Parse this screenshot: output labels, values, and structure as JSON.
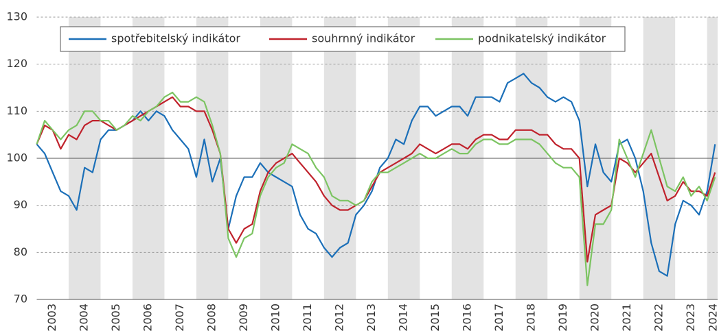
{
  "chart_data": {
    "type": "line",
    "x": [
      2003,
      2003.25,
      2003.5,
      2003.75,
      2004,
      2004.25,
      2004.5,
      2004.75,
      2005,
      2005.25,
      2005.5,
      2005.75,
      2006,
      2006.25,
      2006.5,
      2006.75,
      2007,
      2007.25,
      2007.5,
      2007.75,
      2008,
      2008.25,
      2008.5,
      2008.75,
      2009,
      2009.25,
      2009.5,
      2009.75,
      2010,
      2010.25,
      2010.5,
      2010.75,
      2011,
      2011.25,
      2011.5,
      2011.75,
      2012,
      2012.25,
      2012.5,
      2012.75,
      2013,
      2013.25,
      2013.5,
      2013.75,
      2014,
      2014.25,
      2014.5,
      2014.75,
      2015,
      2015.25,
      2015.5,
      2015.75,
      2016,
      2016.25,
      2016.5,
      2016.75,
      2017,
      2017.25,
      2017.5,
      2017.75,
      2018,
      2018.25,
      2018.5,
      2018.75,
      2019,
      2019.25,
      2019.5,
      2019.75,
      2020,
      2020.25,
      2020.5,
      2020.75,
      2021,
      2021.25,
      2021.5,
      2021.75,
      2022,
      2022.25,
      2022.5,
      2022.75,
      2023,
      2023.25,
      2023.5,
      2023.75,
      2024,
      2024.25
    ],
    "series": [
      {
        "name": "spotřebitelský indikátor",
        "color": "#1b6fb8",
        "values": [
          103,
          101,
          97,
          93,
          92,
          89,
          98,
          97,
          104,
          106,
          106,
          107,
          108,
          110,
          108,
          110,
          109,
          106,
          104,
          102,
          96,
          104,
          95,
          100,
          85,
          92,
          96,
          96,
          99,
          97,
          96,
          95,
          94,
          88,
          85,
          84,
          81,
          79,
          81,
          82,
          88,
          90,
          93,
          98,
          100,
          104,
          103,
          108,
          111,
          111,
          109,
          110,
          111,
          111,
          109,
          113,
          113,
          113,
          112,
          116,
          117,
          118,
          116,
          115,
          113,
          112,
          113,
          112,
          108,
          94,
          103,
          97,
          95,
          103,
          104,
          100,
          93,
          82,
          76,
          75,
          86,
          91,
          90,
          88,
          93,
          103
        ]
      },
      {
        "name": "souhrnný indikátor",
        "color": "#c0222c",
        "values": [
          103,
          107,
          106,
          102,
          105,
          104,
          107,
          108,
          108,
          107,
          106,
          107,
          108,
          109,
          110,
          111,
          112,
          113,
          111,
          111,
          110,
          110,
          106,
          101,
          85,
          82,
          85,
          86,
          93,
          97,
          99,
          100,
          101,
          99,
          97,
          95,
          92,
          90,
          89,
          89,
          90,
          91,
          94,
          97,
          98,
          99,
          100,
          101,
          103,
          102,
          101,
          102,
          103,
          103,
          102,
          104,
          105,
          105,
          104,
          104,
          106,
          106,
          106,
          105,
          105,
          103,
          102,
          102,
          100,
          78,
          88,
          89,
          90,
          100,
          99,
          97,
          99,
          101,
          96,
          91,
          92,
          95,
          93,
          93,
          92,
          97
        ]
      },
      {
        "name": "podnikatelský indikátor",
        "color": "#7cc462",
        "values": [
          103,
          108,
          106,
          104,
          106,
          107,
          110,
          110,
          108,
          108,
          106,
          107,
          109,
          108,
          110,
          111,
          113,
          114,
          112,
          112,
          113,
          112,
          107,
          101,
          83,
          79,
          83,
          84,
          92,
          96,
          98,
          99,
          103,
          102,
          101,
          98,
          96,
          92,
          91,
          91,
          90,
          91,
          95,
          97,
          97,
          98,
          99,
          100,
          101,
          100,
          100,
          101,
          102,
          101,
          101,
          103,
          104,
          104,
          103,
          103,
          104,
          104,
          104,
          103,
          101,
          99,
          98,
          98,
          96,
          73,
          86,
          86,
          89,
          104,
          100,
          96,
          101,
          106,
          100,
          94,
          93,
          96,
          92,
          94,
          91,
          96
        ]
      }
    ],
    "xlim": [
      2003,
      2024.33
    ],
    "xticks": [
      2003,
      2004,
      2005,
      2006,
      2007,
      2008,
      2009,
      2010,
      2011,
      2012,
      2013,
      2014,
      2015,
      2016,
      2017,
      2018,
      2019,
      2020,
      2021,
      2022,
      2023,
      2024
    ],
    "ylim": [
      70,
      130
    ],
    "yticks": [
      70,
      80,
      90,
      100,
      110,
      120,
      130
    ],
    "baseline": 100,
    "grid": true,
    "legend": "top"
  }
}
